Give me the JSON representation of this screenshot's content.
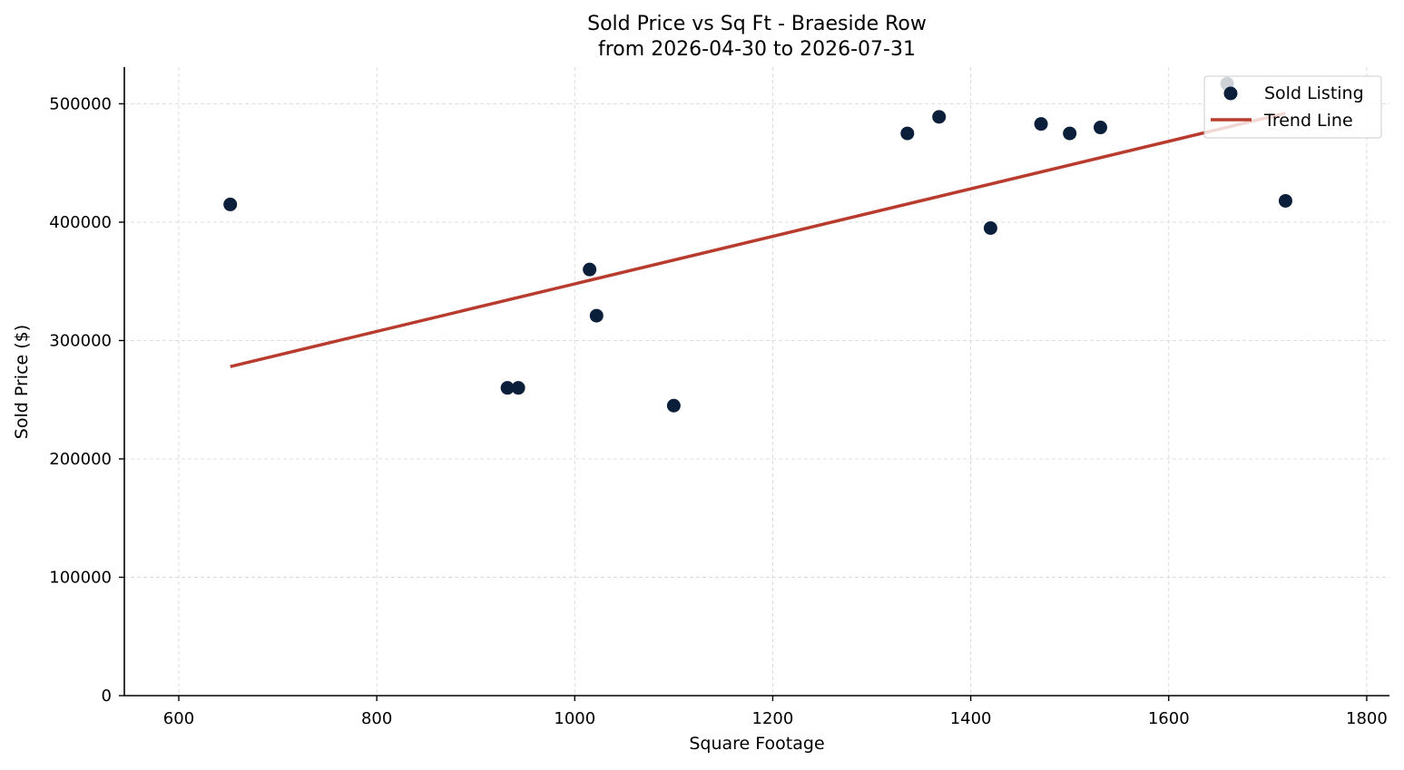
{
  "chart_data": {
    "type": "scatter",
    "title": "Sold Price vs Sq Ft - Braeside Row",
    "subtitle": "from 2026-04-30 to 2026-07-31",
    "xlabel": "Square Footage",
    "ylabel": "Sold Price ($)",
    "xlim": [
      545,
      1823
    ],
    "ylim": [
      0,
      531000
    ],
    "x_ticks": [
      600,
      800,
      1000,
      1200,
      1400,
      1600,
      1800
    ],
    "y_ticks": [
      0,
      100000,
      200000,
      300000,
      400000,
      500000
    ],
    "grid": true,
    "legend_position": "top-right",
    "colors": {
      "points": "#0b1f3a",
      "trend": "#b83c2e",
      "grid": "#d9d9d9"
    },
    "series": [
      {
        "name": "Sold Listing",
        "type": "scatter",
        "points": [
          {
            "x": 652,
            "y": 415000
          },
          {
            "x": 932,
            "y": 260000
          },
          {
            "x": 943,
            "y": 260000
          },
          {
            "x": 1015,
            "y": 360000
          },
          {
            "x": 1022,
            "y": 321000
          },
          {
            "x": 1100,
            "y": 245000
          },
          {
            "x": 1336,
            "y": 475000
          },
          {
            "x": 1368,
            "y": 489000
          },
          {
            "x": 1420,
            "y": 395000
          },
          {
            "x": 1471,
            "y": 483000
          },
          {
            "x": 1500,
            "y": 475000
          },
          {
            "x": 1531,
            "y": 480000
          },
          {
            "x": 1659,
            "y": 517000
          },
          {
            "x": 1718,
            "y": 418000
          }
        ]
      },
      {
        "name": "Trend Line",
        "type": "line",
        "points": [
          {
            "x": 652,
            "y": 278000
          },
          {
            "x": 1718,
            "y": 492000
          }
        ]
      }
    ]
  }
}
